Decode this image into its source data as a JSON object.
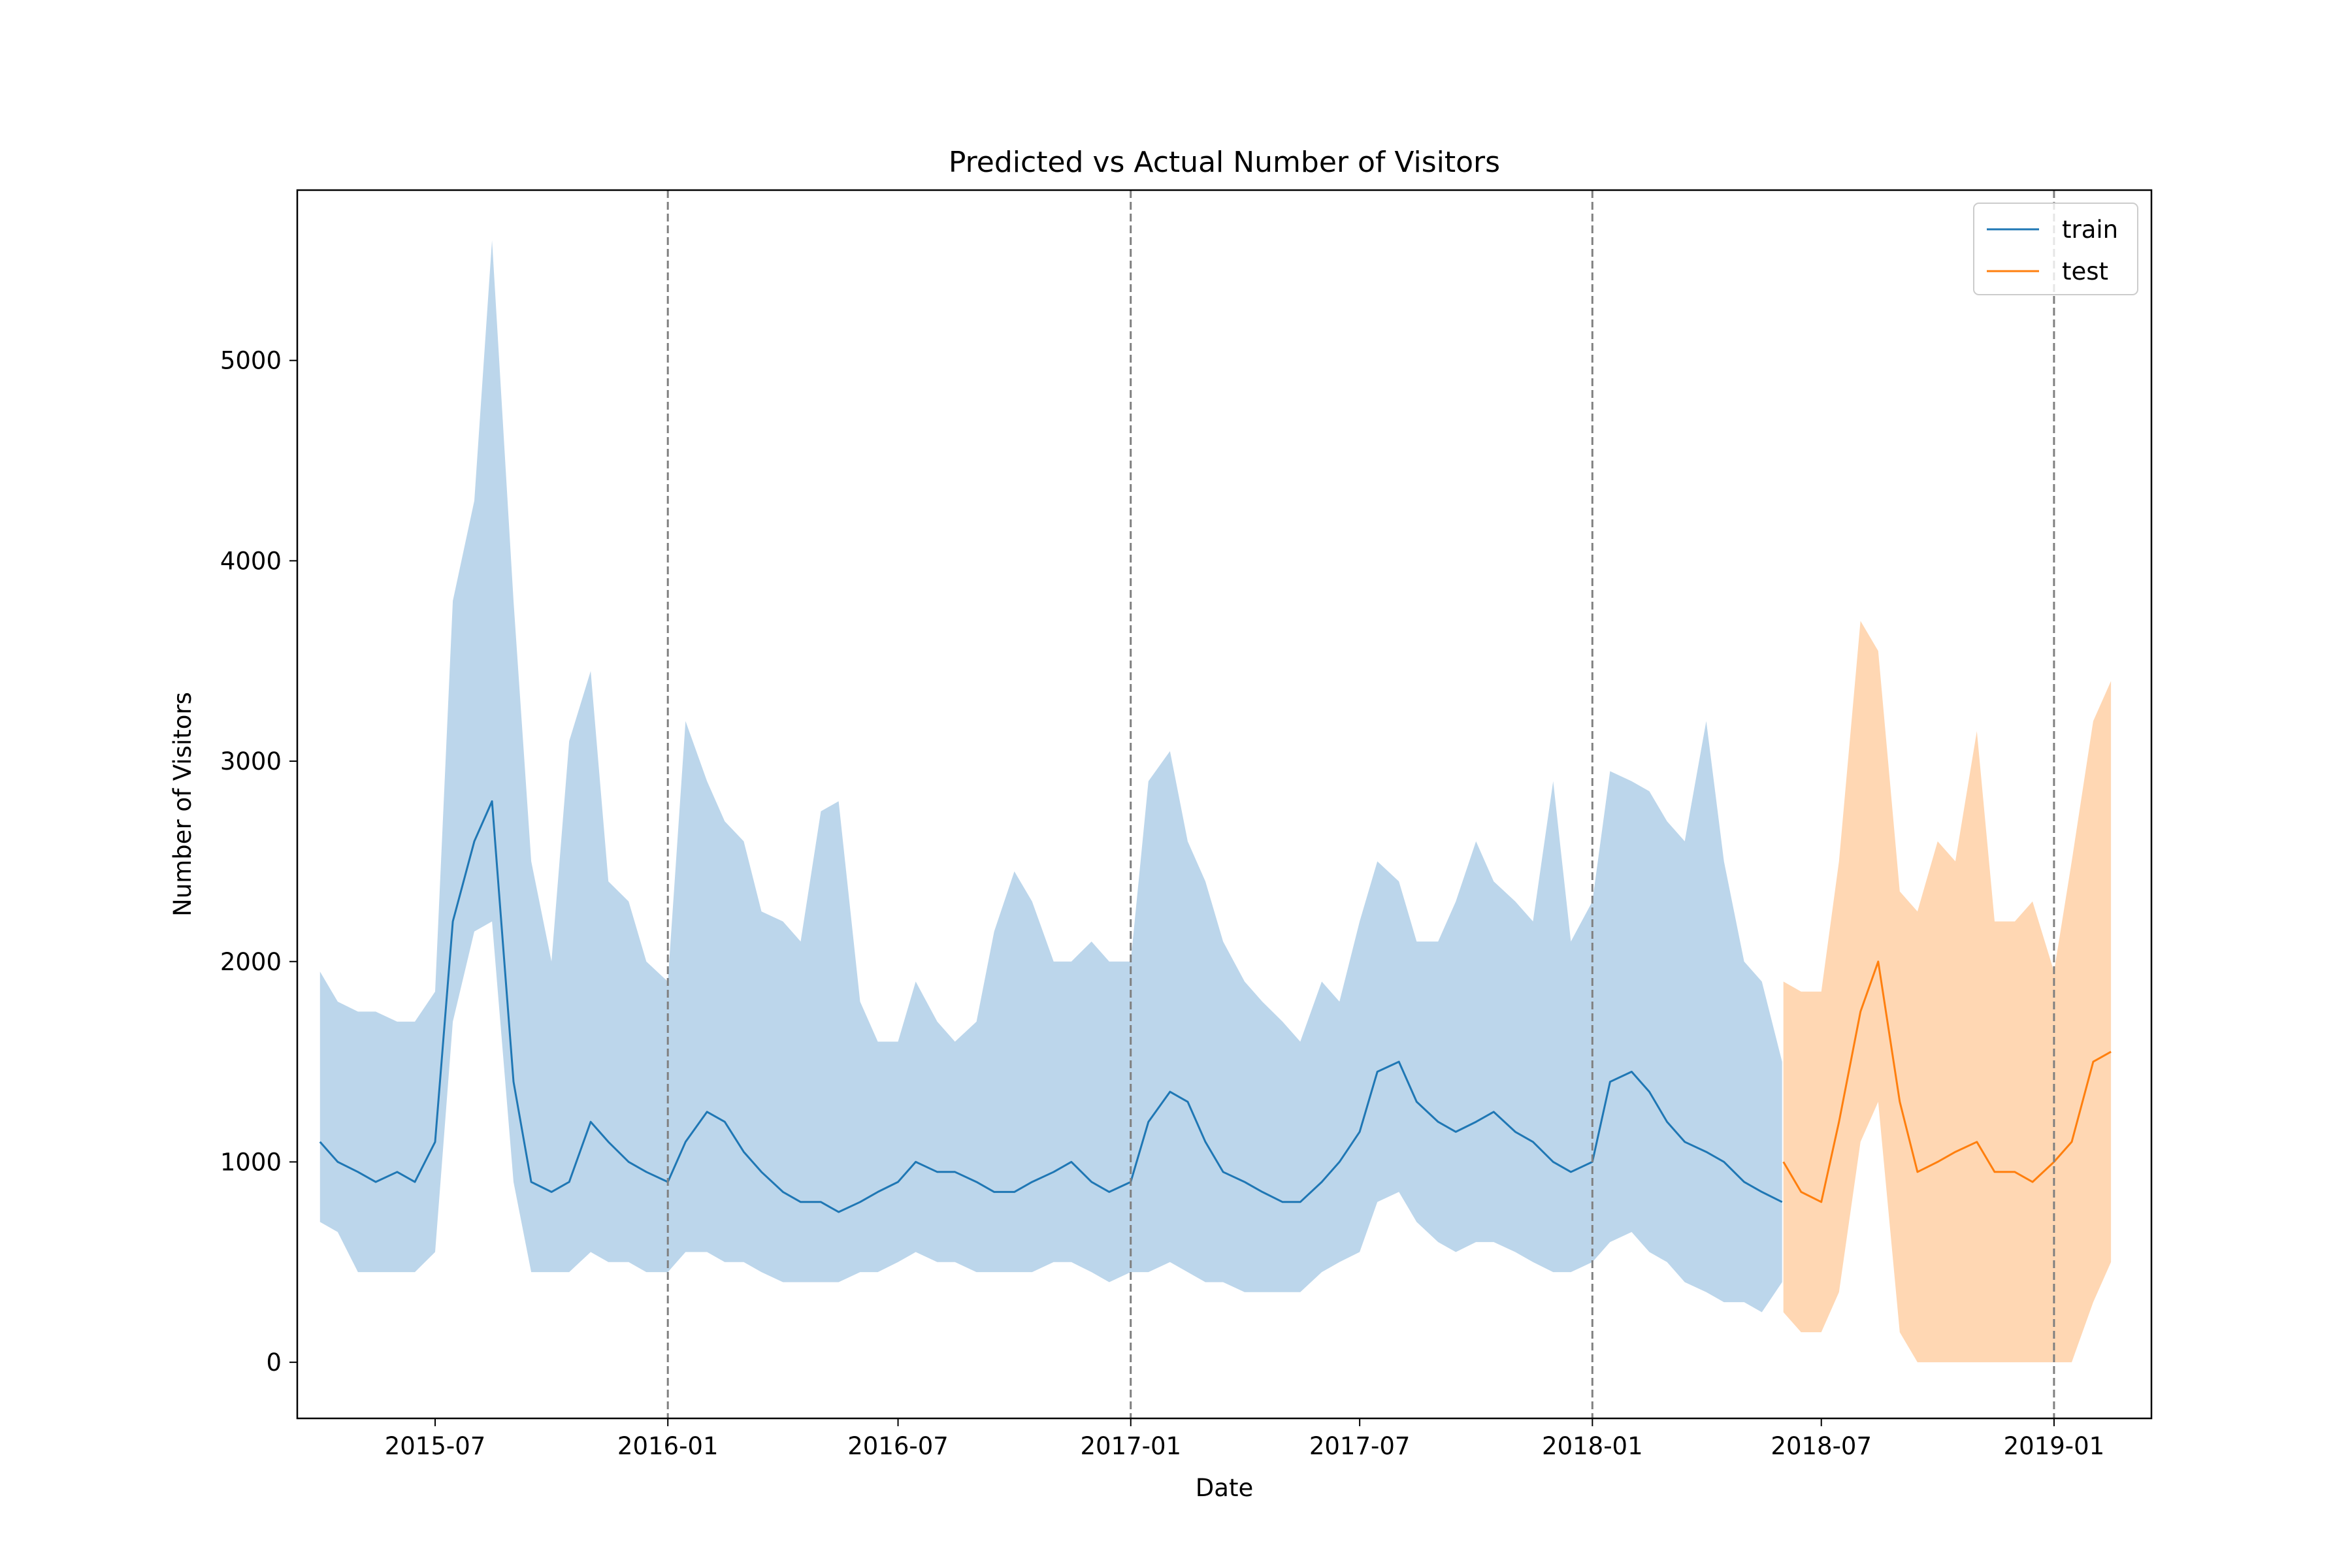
{
  "chart_data": {
    "type": "line",
    "title": "Predicted vs Actual Number of Visitors",
    "xlabel": "Date",
    "ylabel": "Number of Visitors",
    "xlim": [
      "2015-03-14",
      "2019-03-19"
    ],
    "ylim": [
      -280,
      5850
    ],
    "x_ticks": [
      "2015-07",
      "2016-01",
      "2016-07",
      "2017-01",
      "2017-07",
      "2018-01",
      "2018-07",
      "2019-01"
    ],
    "y_ticks": [
      0,
      1000,
      2000,
      3000,
      4000,
      5000
    ],
    "vlines": [
      "2016-01-01",
      "2017-01-01",
      "2018-01-01",
      "2019-01-01"
    ],
    "vline_color": "#808080",
    "legend_position": "top-right",
    "grid": false,
    "series": [
      {
        "name": "train",
        "color": "#1f77b4",
        "band_color": "#a6c8e4",
        "x": [
          "2015-04-01",
          "2015-04-15",
          "2015-05-01",
          "2015-05-15",
          "2015-06-01",
          "2015-06-15",
          "2015-07-01",
          "2015-07-15",
          "2015-08-01",
          "2015-08-15",
          "2015-09-01",
          "2015-09-15",
          "2015-10-01",
          "2015-10-15",
          "2015-11-01",
          "2015-11-15",
          "2015-12-01",
          "2015-12-15",
          "2016-01-01",
          "2016-01-15",
          "2016-02-01",
          "2016-02-15",
          "2016-03-01",
          "2016-03-15",
          "2016-04-01",
          "2016-04-15",
          "2016-05-01",
          "2016-05-15",
          "2016-06-01",
          "2016-06-15",
          "2016-07-01",
          "2016-07-15",
          "2016-08-01",
          "2016-08-15",
          "2016-09-01",
          "2016-09-15",
          "2016-10-01",
          "2016-10-15",
          "2016-11-01",
          "2016-11-15",
          "2016-12-01",
          "2016-12-15",
          "2017-01-01",
          "2017-01-15",
          "2017-02-01",
          "2017-02-15",
          "2017-03-01",
          "2017-03-15",
          "2017-04-01",
          "2017-04-15",
          "2017-05-01",
          "2017-05-15",
          "2017-06-01",
          "2017-06-15",
          "2017-07-01",
          "2017-07-15",
          "2017-08-01",
          "2017-08-15",
          "2017-09-01",
          "2017-09-15",
          "2017-10-01",
          "2017-10-15",
          "2017-11-01",
          "2017-11-15",
          "2017-12-01",
          "2017-12-15",
          "2018-01-01",
          "2018-01-15",
          "2018-02-01",
          "2018-02-15",
          "2018-03-01",
          "2018-03-15",
          "2018-04-01",
          "2018-04-15",
          "2018-05-01",
          "2018-05-15",
          "2018-05-31"
        ],
        "y": [
          1100,
          1000,
          950,
          900,
          950,
          900,
          1100,
          2200,
          2600,
          2800,
          1400,
          900,
          850,
          900,
          1200,
          1100,
          1000,
          950,
          900,
          1100,
          1250,
          1200,
          1050,
          950,
          850,
          800,
          800,
          750,
          800,
          850,
          900,
          1000,
          950,
          950,
          900,
          850,
          850,
          900,
          950,
          1000,
          900,
          850,
          900,
          1200,
          1350,
          1300,
          1100,
          950,
          900,
          850,
          800,
          800,
          900,
          1000,
          1150,
          1450,
          1500,
          1300,
          1200,
          1150,
          1200,
          1250,
          1150,
          1100,
          1000,
          950,
          1000,
          1400,
          1450,
          1350,
          1200,
          1100,
          1050,
          1000,
          900,
          850,
          800
        ],
        "low": [
          700,
          650,
          450,
          450,
          450,
          450,
          550,
          1700,
          2150,
          2200,
          900,
          450,
          450,
          450,
          550,
          500,
          500,
          450,
          450,
          550,
          550,
          500,
          500,
          450,
          400,
          400,
          400,
          400,
          450,
          450,
          500,
          550,
          500,
          500,
          450,
          450,
          450,
          450,
          500,
          500,
          450,
          400,
          450,
          450,
          500,
          450,
          400,
          400,
          350,
          350,
          350,
          350,
          450,
          500,
          550,
          800,
          850,
          700,
          600,
          550,
          600,
          600,
          550,
          500,
          450,
          450,
          500,
          600,
          650,
          550,
          500,
          400,
          350,
          300,
          300,
          250,
          400
        ],
        "high": [
          1950,
          1800,
          1750,
          1750,
          1700,
          1700,
          1850,
          3800,
          4300,
          5600,
          3800,
          2500,
          2000,
          3100,
          3450,
          2400,
          2300,
          2000,
          1900,
          3200,
          2900,
          2700,
          2600,
          2250,
          2200,
          2100,
          2750,
          2800,
          1800,
          1600,
          1600,
          1900,
          1700,
          1600,
          1700,
          2150,
          2450,
          2300,
          2000,
          2000,
          2100,
          2000,
          2000,
          2900,
          3050,
          2600,
          2400,
          2100,
          1900,
          1800,
          1700,
          1600,
          1900,
          1800,
          2200,
          2500,
          2400,
          2100,
          2100,
          2300,
          2600,
          2400,
          2300,
          2200,
          2900,
          2100,
          2300,
          2950,
          2900,
          2850,
          2700,
          2600,
          3200,
          2500,
          2000,
          1900,
          1500
        ]
      },
      {
        "name": "test",
        "color": "#ff7f0e",
        "band_color": "#ffc999",
        "x": [
          "2018-06-01",
          "2018-06-15",
          "2018-07-01",
          "2018-07-15",
          "2018-08-01",
          "2018-08-15",
          "2018-09-01",
          "2018-09-15",
          "2018-10-01",
          "2018-10-15",
          "2018-11-01",
          "2018-11-15",
          "2018-12-01",
          "2018-12-15",
          "2019-01-01",
          "2019-01-15",
          "2019-02-01",
          "2019-02-15"
        ],
        "y": [
          1000,
          850,
          800,
          1200,
          1750,
          2000,
          1300,
          950,
          1000,
          1050,
          1100,
          950,
          950,
          900,
          1000,
          1100,
          1500,
          1550
        ],
        "low": [
          250,
          150,
          150,
          350,
          1100,
          1300,
          150,
          0,
          0,
          0,
          0,
          0,
          0,
          0,
          0,
          0,
          300,
          500
        ],
        "high": [
          1900,
          1850,
          1850,
          2500,
          3700,
          3550,
          2350,
          2250,
          2600,
          2500,
          3150,
          2200,
          2200,
          2300,
          1950,
          2500,
          3200,
          3400
        ]
      }
    ]
  }
}
